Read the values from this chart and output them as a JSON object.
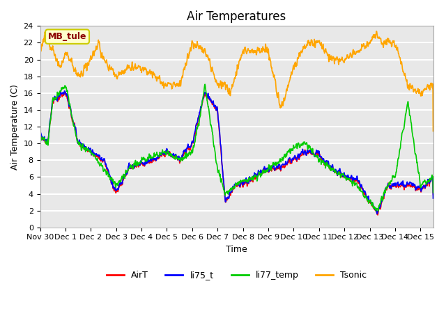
{
  "title": "Air Temperatures",
  "xlabel": "Time",
  "ylabel": "Air Temperature (C)",
  "annotation": "MB_tule",
  "legend_labels": [
    "AirT",
    "li75_t",
    "li77_temp",
    "Tsonic"
  ],
  "line_colors": {
    "AirT": "#ff0000",
    "li75_t": "#0000ff",
    "li77_temp": "#00cc00",
    "Tsonic": "#ffa500"
  },
  "ylim": [
    0,
    24
  ],
  "yticks": [
    0,
    2,
    4,
    6,
    8,
    10,
    12,
    14,
    16,
    18,
    20,
    22,
    24
  ],
  "x_tick_labels": [
    "Nov 30",
    "Dec 1",
    "Dec 2",
    "Dec 3",
    "Dec 4",
    "Dec 5",
    "Dec 6",
    "Dec 7",
    "Dec 8",
    "Dec 9",
    "Dec 10",
    "Dec 11",
    "Dec 12",
    "Dec 13",
    "Dec 14",
    "Dec 15"
  ],
  "plot_bg_color": "#e8e8e8",
  "grid_color": "#ffffff",
  "figsize": [
    6.4,
    4.8
  ],
  "dpi": 100,
  "line_width": 1.2,
  "airt_key_t": [
    0,
    0.3,
    0.5,
    1.0,
    1.2,
    1.5,
    2.0,
    2.5,
    3.0,
    3.5,
    4.0,
    4.5,
    5.0,
    5.5,
    6.0,
    6.5,
    7.0,
    7.3,
    7.7,
    8.0,
    8.5,
    9.0,
    9.5,
    10.0,
    10.5,
    11.0,
    11.5,
    12.0,
    12.5,
    13.0,
    13.3,
    13.7,
    14.0,
    14.5,
    15.0,
    15.5
  ],
  "airt_key_v": [
    11,
    10,
    15,
    16,
    14,
    10,
    9,
    8,
    4,
    7,
    7.5,
    8,
    9,
    8,
    10,
    16,
    14,
    3,
    5,
    5,
    6,
    7,
    7,
    8,
    9,
    8.5,
    7,
    6,
    5.5,
    3,
    1.5,
    5,
    5,
    5,
    4.5,
    6
  ],
  "li77_key_t": [
    0,
    0.3,
    0.5,
    1.0,
    1.2,
    1.5,
    2.0,
    2.5,
    3.0,
    3.5,
    4.0,
    4.5,
    5.0,
    5.5,
    6.0,
    6.3,
    6.5,
    7.0,
    7.3,
    7.7,
    8.0,
    8.5,
    9.0,
    9.5,
    10.0,
    10.5,
    11.0,
    11.5,
    12.0,
    12.5,
    13.0,
    13.3,
    13.7,
    14.0,
    14.5,
    15.0,
    15.5
  ],
  "li77_key_v": [
    11,
    10,
    15,
    17,
    14,
    10,
    9,
    7,
    5,
    7,
    8,
    8.5,
    9,
    8,
    9,
    13,
    17,
    7,
    4,
    5,
    5.5,
    6,
    7,
    8,
    9.5,
    10,
    8,
    7,
    6,
    5,
    3,
    2,
    5,
    6,
    15,
    5,
    6
  ],
  "tsonic_key_t": [
    0,
    0.2,
    0.5,
    0.8,
    1.0,
    1.5,
    2.0,
    2.3,
    2.5,
    3.0,
    3.5,
    4.0,
    4.5,
    5.0,
    5.5,
    6.0,
    6.5,
    7.0,
    7.3,
    7.5,
    8.0,
    8.5,
    9.0,
    9.5,
    10.0,
    10.5,
    11.0,
    11.5,
    12.0,
    12.5,
    13.0,
    13.3,
    13.5,
    14.0,
    14.5,
    15.0,
    15.5
  ],
  "tsonic_key_v": [
    21,
    23,
    21,
    19,
    21,
    18,
    20,
    22,
    20,
    18,
    19,
    19,
    18,
    17,
    17,
    22,
    21,
    17,
    17,
    16,
    21,
    21,
    21,
    14,
    19,
    22,
    22,
    20,
    20,
    21,
    22,
    23,
    22,
    22,
    17,
    16,
    17
  ]
}
